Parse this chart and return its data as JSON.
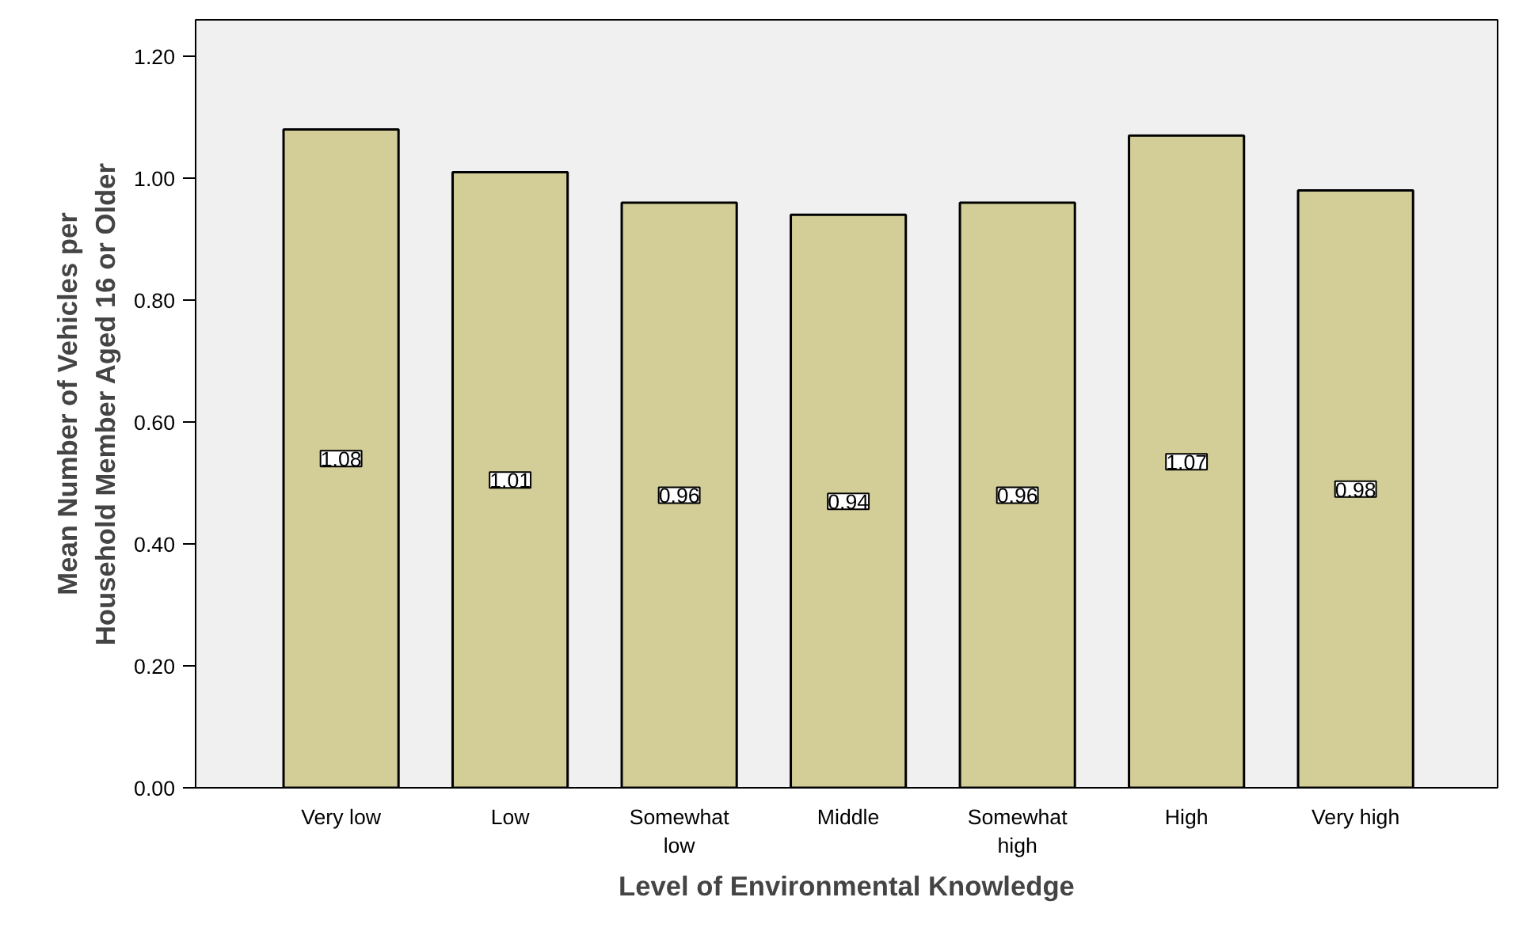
{
  "chart_data": {
    "type": "bar",
    "xlabel": "Level of Environmental Knowledge",
    "ylabel": "Mean Number of Vehicles per\nHousehold Member Aged 16 or Older",
    "categories": [
      "Very low",
      "Low",
      "Somewhat\nlow",
      "Middle",
      "Somewhat\nhigh",
      "High",
      "Very high"
    ],
    "values": [
      1.08,
      1.01,
      0.96,
      0.94,
      0.96,
      1.07,
      0.98
    ],
    "color": "#d3ce97",
    "data_labels": true,
    "ylim": [
      0,
      1.26
    ],
    "yticks": [
      {
        "value": 0,
        "label": "0.00"
      },
      {
        "value": 0.2,
        "label": "0.20"
      },
      {
        "value": 0.4,
        "label": "0.40"
      },
      {
        "value": 0.6,
        "label": "0.60"
      },
      {
        "value": 0.8,
        "label": "0.80"
      },
      {
        "value": 1.0,
        "label": "1.00"
      },
      {
        "value": 1.2,
        "label": "1.20"
      }
    ]
  }
}
